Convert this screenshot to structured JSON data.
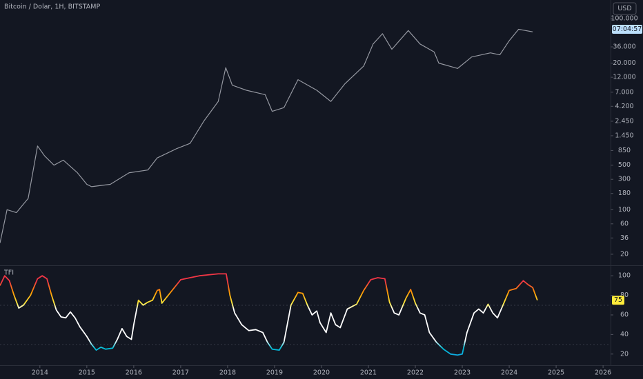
{
  "chart_data": [
    {
      "type": "line",
      "title": "Bitcoin / Dolar, 1H, BITSTAMP",
      "currency": "USD",
      "countdown": "07:04:57",
      "log_scale": true,
      "color": "#9598a1",
      "xlim": [
        2013.15,
        2026.16
      ],
      "ylim": [
        13.4,
        196000
      ],
      "yticks": [
        {
          "value": 100000,
          "label": "100.000"
        },
        {
          "value": 36000,
          "label": "36.000"
        },
        {
          "value": 20000,
          "label": "20.000"
        },
        {
          "value": 12000,
          "label": "12.000"
        },
        {
          "value": 7000,
          "label": "7.000"
        },
        {
          "value": 4200,
          "label": "4.200"
        },
        {
          "value": 2450,
          "label": "2.450"
        },
        {
          "value": 1450,
          "label": "1.450"
        },
        850,
        500,
        300,
        180,
        100,
        60,
        36,
        20
      ],
      "x": [
        2013.15,
        2013.3,
        2013.5,
        2013.75,
        2013.95,
        2014.1,
        2014.3,
        2014.5,
        2014.8,
        2015.0,
        2015.1,
        2015.5,
        2015.9,
        2016.3,
        2016.5,
        2016.9,
        2017.2,
        2017.5,
        2017.8,
        2017.96,
        2018.1,
        2018.4,
        2018.8,
        2018.95,
        2019.2,
        2019.5,
        2019.9,
        2020.2,
        2020.5,
        2020.9,
        2021.1,
        2021.3,
        2021.5,
        2021.85,
        2022.1,
        2022.4,
        2022.5,
        2022.9,
        2023.2,
        2023.6,
        2023.8,
        2024.0,
        2024.2,
        2024.5
      ],
      "values": [
        30,
        100,
        90,
        150,
        1000,
        700,
        500,
        600,
        380,
        250,
        230,
        250,
        380,
        420,
        650,
        900,
        1100,
        2500,
        5000,
        17000,
        9000,
        7500,
        6400,
        3500,
        4000,
        11000,
        7500,
        5000,
        9500,
        18000,
        40000,
        58000,
        33000,
        65000,
        40000,
        30000,
        20000,
        16500,
        25000,
        29000,
        27000,
        45000,
        68000,
        62000
      ]
    },
    {
      "type": "line",
      "title": "TFI",
      "last_value": 75,
      "xlim": [
        2013.15,
        2026.16
      ],
      "ylim": [
        10,
        110
      ],
      "xticks": [
        2014,
        2015,
        2016,
        2017,
        2018,
        2019,
        2020,
        2021,
        2022,
        2023,
        2024,
        2025,
        2026
      ],
      "yticks": [
        100,
        80,
        60,
        40,
        20
      ],
      "x": [
        2013.15,
        2013.25,
        2013.35,
        2013.45,
        2013.55,
        2013.65,
        2013.8,
        2013.95,
        2014.05,
        2014.15,
        2014.25,
        2014.35,
        2014.45,
        2014.55,
        2014.65,
        2014.75,
        2014.85,
        2015.0,
        2015.1,
        2015.2,
        2015.3,
        2015.4,
        2015.55,
        2015.65,
        2015.75,
        2015.85,
        2015.95,
        2016.0,
        2016.1,
        2016.2,
        2016.3,
        2016.4,
        2016.5,
        2016.55,
        2016.6,
        2016.7,
        2016.85,
        2017.0,
        2017.2,
        2017.4,
        2017.6,
        2017.8,
        2017.97,
        2018.05,
        2018.15,
        2018.3,
        2018.45,
        2018.6,
        2018.75,
        2018.85,
        2018.95,
        2019.1,
        2019.2,
        2019.35,
        2019.5,
        2019.6,
        2019.7,
        2019.8,
        2019.9,
        2019.97,
        2020.1,
        2020.2,
        2020.3,
        2020.4,
        2020.55,
        2020.75,
        2020.9,
        2021.05,
        2021.2,
        2021.35,
        2021.45,
        2021.55,
        2021.65,
        2021.8,
        2021.9,
        2022.0,
        2022.1,
        2022.2,
        2022.3,
        2022.45,
        2022.6,
        2022.75,
        2022.9,
        2023.0,
        2023.1,
        2023.25,
        2023.35,
        2023.45,
        2023.55,
        2023.65,
        2023.75,
        2023.85,
        2024.0,
        2024.15,
        2024.3,
        2024.4,
        2024.5,
        2024.6
      ],
      "values": [
        90,
        100,
        95,
        80,
        67,
        70,
        80,
        97,
        100,
        97,
        80,
        65,
        58,
        57,
        63,
        57,
        48,
        38,
        30,
        24,
        27,
        25,
        26,
        35,
        46,
        38,
        35,
        50,
        75,
        70,
        73,
        75,
        85,
        86,
        72,
        78,
        87,
        96,
        98,
        100,
        101,
        102,
        102,
        80,
        62,
        50,
        44,
        45,
        42,
        32,
        25,
        24,
        32,
        70,
        83,
        82,
        70,
        60,
        64,
        52,
        42,
        62,
        50,
        47,
        66,
        71,
        85,
        96,
        98,
        97,
        73,
        62,
        60,
        77,
        86,
        72,
        62,
        60,
        42,
        32,
        25,
        20,
        19,
        20,
        42,
        62,
        66,
        62,
        71,
        62,
        57,
        68,
        85,
        87,
        95,
        91,
        88,
        75
      ]
    }
  ]
}
